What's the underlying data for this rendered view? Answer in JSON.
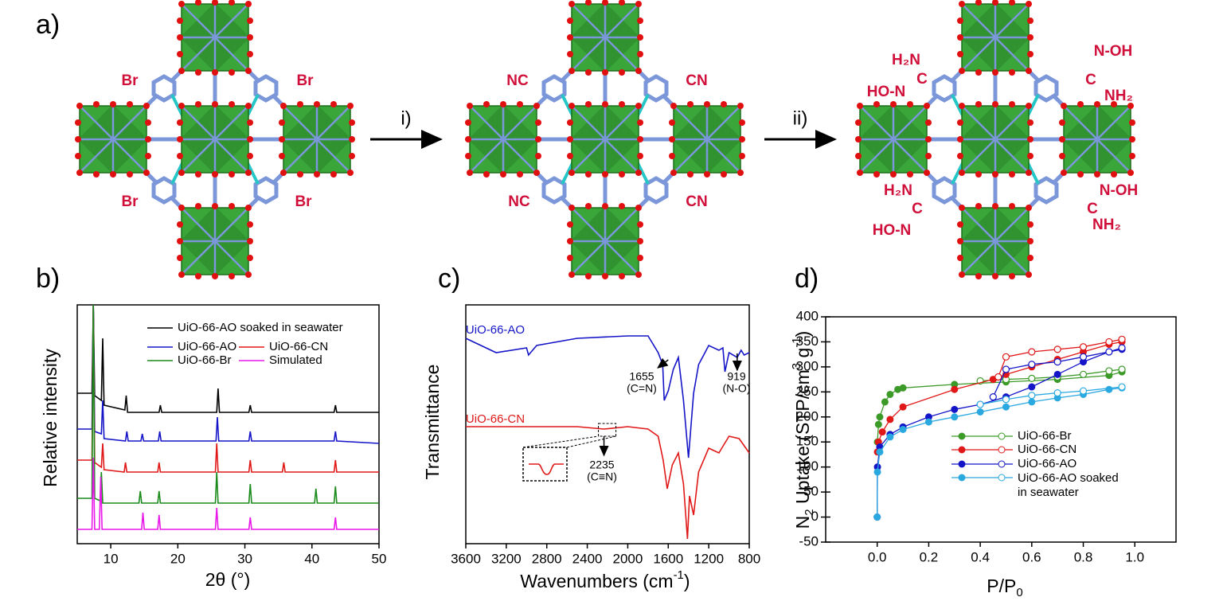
{
  "scheme": {
    "panel_label": "a)",
    "steps": [
      "i)",
      "ii)"
    ],
    "labels": [
      "Br",
      "Br",
      "Br",
      "Br",
      "NC",
      "CN",
      "NC",
      "CN",
      "H₂N",
      "C",
      "HO-N",
      "N-OH",
      "C",
      "NH₂",
      "H₂N",
      "C",
      "HO-N",
      "N-OH",
      "C",
      "NH₂"
    ]
  },
  "chart_data": [
    {
      "type": "line",
      "panel_label": "b)",
      "xlabel": "2θ (°)",
      "ylabel": "Relative intensity",
      "xlim": [
        5,
        50
      ],
      "ylim": [
        0,
        100
      ],
      "xticks": [
        10,
        20,
        30,
        40,
        50
      ],
      "series": [
        {
          "name": "UiO-66-AO soaked in seawater",
          "color": "#000000",
          "x": [
            5,
            7.2,
            7.4,
            7.6,
            8.6,
            8.8,
            9.0,
            12.1,
            12.3,
            12.5,
            14.5,
            17.2,
            17.4,
            17.6,
            22.5,
            25.8,
            26.0,
            26.2,
            30.6,
            30.8,
            31.0,
            43.3,
            43.5,
            43.7,
            50
          ],
          "values": [
            63,
            63,
            100,
            62,
            60,
            86,
            58,
            56,
            62,
            55,
            55,
            55,
            58,
            55,
            55,
            55,
            65,
            55,
            55,
            58,
            55,
            55,
            58,
            55,
            55
          ]
        },
        {
          "name": "UiO-66-AO",
          "color": "#1515c8",
          "x": [
            5,
            7.2,
            7.4,
            7.6,
            8.6,
            8.8,
            9.0,
            12.2,
            12.4,
            12.6,
            14.5,
            14.7,
            14.9,
            17.1,
            17.3,
            17.5,
            25.7,
            25.9,
            26.1,
            30.6,
            30.8,
            31.0,
            43.3,
            43.5,
            43.7,
            50
          ],
          "values": [
            48,
            48,
            100,
            47,
            46,
            60,
            44,
            43,
            47,
            43,
            43,
            46,
            43,
            43,
            47,
            43,
            43,
            53,
            43,
            43,
            47,
            43,
            43,
            47,
            43,
            42
          ]
        },
        {
          "name": "UiO-66-CN",
          "color": "#e01818",
          "x": [
            5,
            7.2,
            7.4,
            7.6,
            8.6,
            8.8,
            9.0,
            12.0,
            12.2,
            12.4,
            17.0,
            17.2,
            17.4,
            25.6,
            25.8,
            26.0,
            30.6,
            30.8,
            31.0,
            35.6,
            35.8,
            36.0,
            43.3,
            43.5,
            43.7,
            50
          ],
          "values": [
            35,
            35,
            100,
            34,
            32,
            42,
            31,
            30,
            34,
            30,
            30,
            34,
            30,
            30,
            42,
            30,
            30,
            35,
            30,
            30,
            34,
            30,
            30,
            35,
            30,
            30
          ]
        },
        {
          "name": "UiO-66-Br",
          "color": "#1a8a1a",
          "x": [
            5,
            7.2,
            7.4,
            7.6,
            8.4,
            8.6,
            8.8,
            14.2,
            14.4,
            14.6,
            17.0,
            17.2,
            17.4,
            25.6,
            25.8,
            26.0,
            30.6,
            30.8,
            31.0,
            40.4,
            40.6,
            40.8,
            43.3,
            43.5,
            43.7,
            50
          ],
          "values": [
            19,
            19,
            100,
            19,
            18,
            30,
            17,
            17,
            22,
            17,
            17,
            22,
            17,
            17,
            30,
            17,
            17,
            25,
            17,
            17,
            23,
            17,
            17,
            24,
            17,
            17
          ]
        },
        {
          "name": "Simulated",
          "color": "#e818e8",
          "x": [
            5,
            7.2,
            7.4,
            7.6,
            8.3,
            8.5,
            8.7,
            14.6,
            14.8,
            15.0,
            17.0,
            17.2,
            17.4,
            25.6,
            25.8,
            26.0,
            30.6,
            30.8,
            31.0,
            43.3,
            43.5,
            43.7,
            50
          ],
          "values": [
            6,
            6,
            36,
            6,
            6,
            28,
            6,
            6,
            13,
            6,
            6,
            12,
            6,
            6,
            15,
            6,
            6,
            11,
            6,
            6,
            11,
            6,
            6
          ]
        }
      ]
    },
    {
      "type": "line",
      "panel_label": "c)",
      "xlabel": [
        "Wavenumbers (cm",
        "-1",
        ")"
      ],
      "ylabel": "Transmittance",
      "xlim": [
        3600,
        800
      ],
      "ylim": [
        0,
        100
      ],
      "xticks": [
        3600,
        3200,
        2800,
        2400,
        2000,
        1600,
        1200,
        800
      ],
      "annotations": [
        "1655",
        "(C=N)",
        "919",
        "(N-O)",
        "2235",
        "(C≡N)"
      ],
      "series": [
        {
          "name": "UiO-66-AO",
          "color": "#1515c8",
          "x": [
            3600,
            3300,
            3000,
            2980,
            2900,
            2500,
            2000,
            1800,
            1700,
            1655,
            1640,
            1600,
            1550,
            1500,
            1450,
            1400,
            1350,
            1300,
            1250,
            1200,
            1100,
            1060,
            1040,
            1000,
            919,
            880,
            850,
            800
          ],
          "values": [
            86,
            80,
            82,
            79,
            83,
            86,
            87,
            87,
            80,
            75,
            60,
            64,
            73,
            78,
            60,
            36,
            63,
            75,
            79,
            83,
            81,
            82,
            72,
            80,
            78,
            81,
            79,
            80
          ]
        },
        {
          "name": "UiO-66-CN",
          "color": "#e01818",
          "x": [
            3600,
            3000,
            2500,
            2235,
            2000,
            1800,
            1700,
            1650,
            1610,
            1560,
            1500,
            1450,
            1410,
            1390,
            1350,
            1300,
            1200,
            1100,
            1000,
            900,
            800
          ],
          "values": [
            49,
            49,
            49,
            48,
            49,
            48,
            45,
            35,
            23,
            33,
            38,
            25,
            2,
            20,
            12,
            30,
            40,
            38,
            45,
            44,
            38
          ]
        }
      ]
    },
    {
      "type": "scatter",
      "panel_label": "d)",
      "xlabel": [
        "P/P",
        "0"
      ],
      "ylabel": [
        "N",
        "2",
        " Uptake (STP/cm",
        "3",
        " g",
        "-1",
        ")"
      ],
      "xlim": [
        -0.2,
        1.16
      ],
      "ylim": [
        -50,
        400
      ],
      "xticks": [
        {
          "value": 0,
          "label": "0.0"
        },
        0.2,
        0.4,
        0.6,
        0.8,
        {
          "value": 1,
          "label": "1.0"
        }
      ],
      "yticks": [
        -50,
        0,
        50,
        100,
        150,
        200,
        250,
        300,
        350,
        400
      ],
      "series": [
        {
          "name": "UiO-66-Br",
          "color": "#3c9a28",
          "x": [
            0.001,
            0.005,
            0.01,
            0.03,
            0.05,
            0.08,
            0.1,
            0.3,
            0.5,
            0.7,
            0.9,
            0.95
          ],
          "values": [
            150,
            185,
            200,
            230,
            245,
            255,
            258,
            265,
            270,
            275,
            283,
            290
          ],
          "desorption_x": [
            0.95,
            0.9,
            0.8,
            0.7,
            0.6,
            0.5,
            0.4
          ],
          "desorption_values": [
            295,
            292,
            285,
            280,
            277,
            275,
            272
          ]
        },
        {
          "name": "UiO-66-CN",
          "color": "#e01818",
          "x": [
            0.001,
            0.005,
            0.02,
            0.05,
            0.1,
            0.3,
            0.45,
            0.5,
            0.6,
            0.7,
            0.8,
            0.9,
            0.95
          ],
          "values": [
            130,
            150,
            170,
            195,
            220,
            255,
            275,
            285,
            300,
            315,
            330,
            345,
            350
          ],
          "desorption_x": [
            0.95,
            0.9,
            0.8,
            0.7,
            0.6,
            0.5,
            0.47
          ],
          "desorption_values": [
            355,
            350,
            340,
            335,
            330,
            320,
            280
          ]
        },
        {
          "name": "UiO-66-AO",
          "color": "#1515c8",
          "x": [
            0,
            0.001,
            0.01,
            0.05,
            0.1,
            0.2,
            0.3,
            0.4,
            0.5,
            0.6,
            0.7,
            0.8,
            0.9,
            0.95
          ],
          "values": [
            0,
            100,
            140,
            165,
            180,
            200,
            215,
            225,
            240,
            260,
            285,
            310,
            330,
            335
          ],
          "desorption_x": [
            0.95,
            0.9,
            0.8,
            0.7,
            0.6,
            0.5,
            0.45
          ],
          "desorption_values": [
            338,
            330,
            320,
            310,
            305,
            295,
            240
          ]
        },
        {
          "name": "UiO-66-AO soaked in seawater",
          "color": "#2aa8e0",
          "x": [
            0,
            0.001,
            0.01,
            0.05,
            0.1,
            0.2,
            0.3,
            0.4,
            0.5,
            0.6,
            0.7,
            0.8,
            0.9,
            0.95
          ],
          "values": [
            0,
            90,
            130,
            160,
            175,
            190,
            200,
            210,
            220,
            230,
            238,
            245,
            255,
            258
          ],
          "desorption_x": [
            0.95,
            0.8,
            0.7,
            0.6,
            0.5,
            0.4
          ],
          "desorption_values": [
            260,
            252,
            248,
            243,
            235,
            225
          ]
        }
      ]
    }
  ]
}
